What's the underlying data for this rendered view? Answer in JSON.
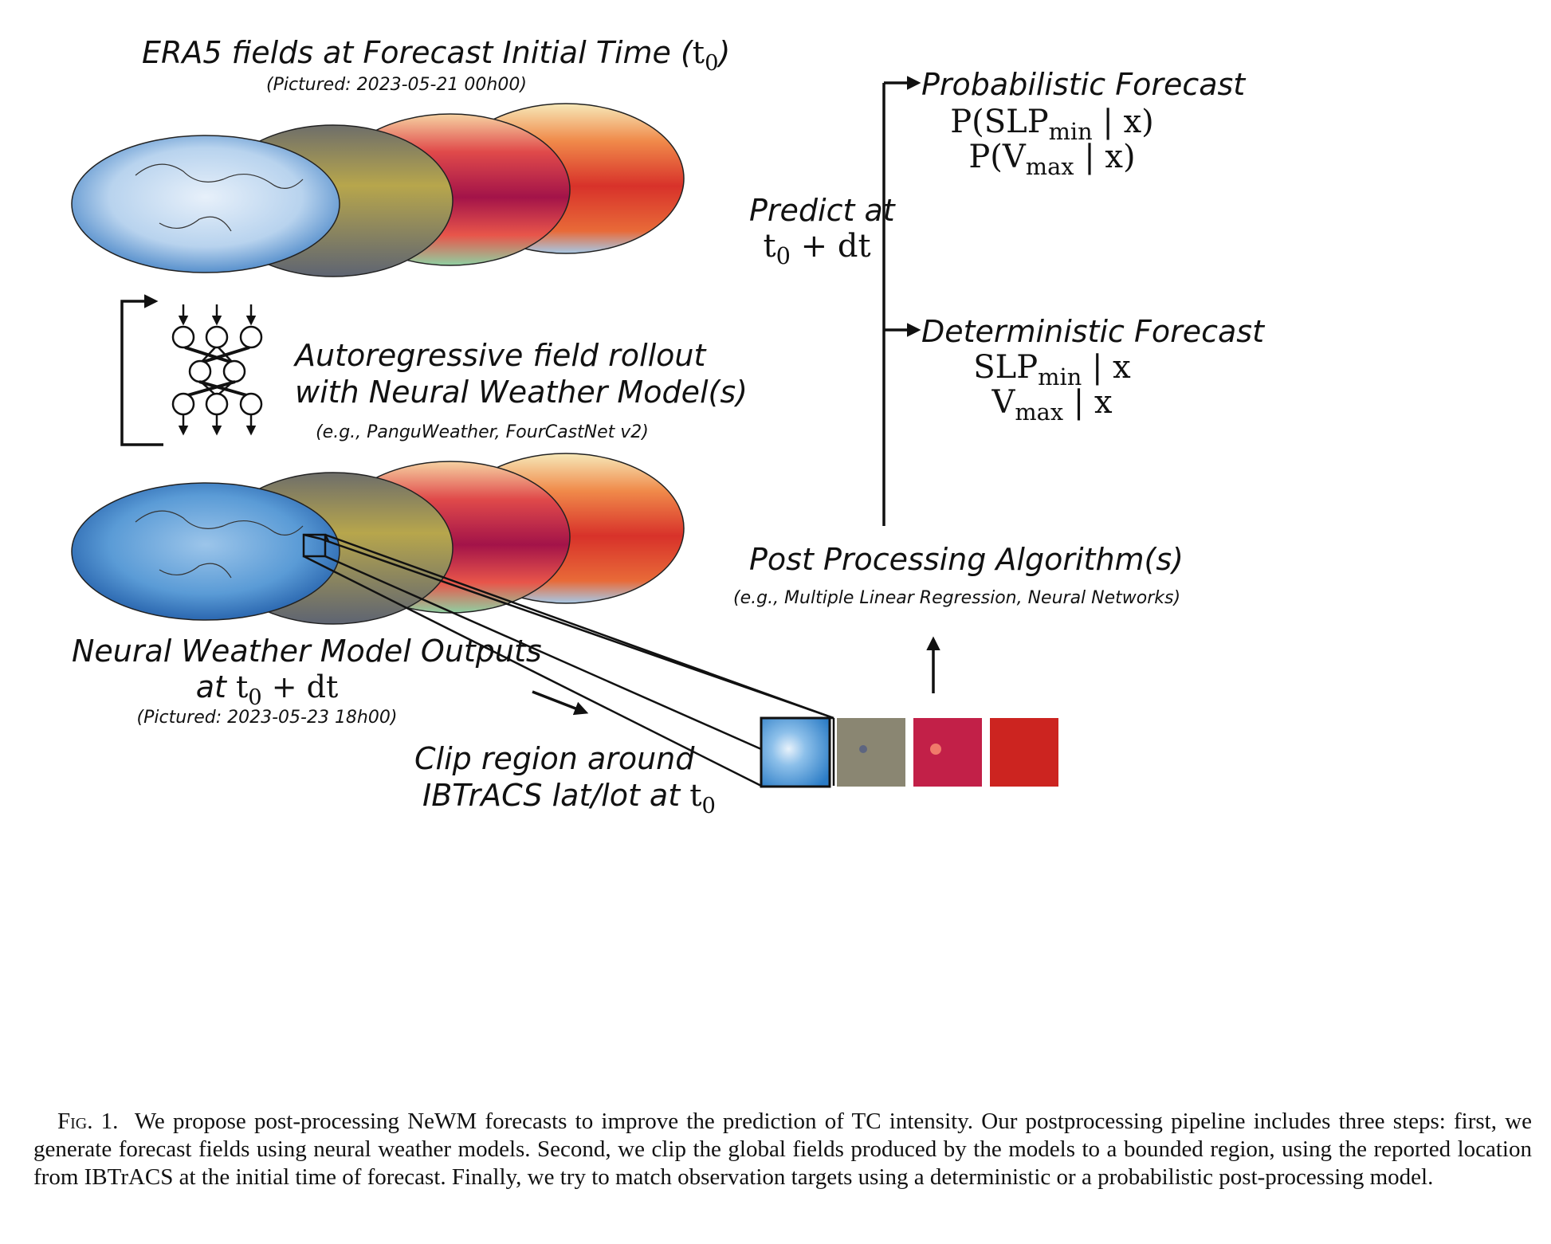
{
  "top_section": {
    "title_prefix": "ERA5 fields at Forecast Initial Time (",
    "title_var": "t",
    "title_sub": "0",
    "title_suffix": ")",
    "pictured": "(Pictured: 2023-05-21 00h00)"
  },
  "middle_section": {
    "line1": "Autoregressive field rollout",
    "line2": "with Neural Weather Model(s)",
    "examples": "(e.g., PanguWeather, FourCastNet v2)"
  },
  "bottom_section": {
    "title": "Neural Weather Model Outputs",
    "at_word": "at",
    "time_var": "t",
    "time_sub": "0",
    "time_suffix": " + dt",
    "pictured": "(Pictured: 2023-05-23 18h00)"
  },
  "clip_section": {
    "line1": "Clip region around",
    "line2_prefix": "IBTrACS lat/lot at ",
    "time_var": "t",
    "time_sub": "0"
  },
  "postprocess_section": {
    "title": "Post Processing Algorithm(s)",
    "examples": "(e.g., Multiple Linear Regression, Neural Networks)"
  },
  "predict_label": {
    "line1": "Predict at",
    "time_var": "t",
    "time_sub": "0",
    "time_suffix": " + dt"
  },
  "probabilistic": {
    "title": "Probabilistic Forecast",
    "eq1_prefix": "P(SLP",
    "eq1_sub": "min",
    "eq1_suffix": " | x)",
    "eq2_prefix": "P(V",
    "eq2_sub": "max",
    "eq2_suffix": " | x)"
  },
  "deterministic": {
    "title": "Deterministic Forecast",
    "eq1_prefix": "SLP",
    "eq1_sub": "min",
    "eq1_suffix": " | x",
    "eq2_prefix": "V",
    "eq2_sub": "max",
    "eq2_suffix": " | x"
  },
  "caption": {
    "fig_label": "Fig. 1.",
    "text": "We propose post-processing NeWM forecasts to improve the prediction of TC intensity. Our postprocessing pipeline includes three steps: first, we generate forecast fields using neural weather models. Second, we clip the global fields produced by the models to a bounded region, using the reported location from IBTrACS at the initial time of forecast. Finally, we try to match observation targets using a deterministic or a probabilistic post-processing model."
  },
  "colors": {
    "map_blue": "#8fb8e0",
    "map_olive": "#8c8a66",
    "map_crimson": "#c4224a",
    "map_red": "#d83a2a",
    "patch_blue": "#3c8fd0",
    "patch_olive": "#8a8672",
    "patch_crimson": "#c22048",
    "patch_red": "#cc2420"
  }
}
